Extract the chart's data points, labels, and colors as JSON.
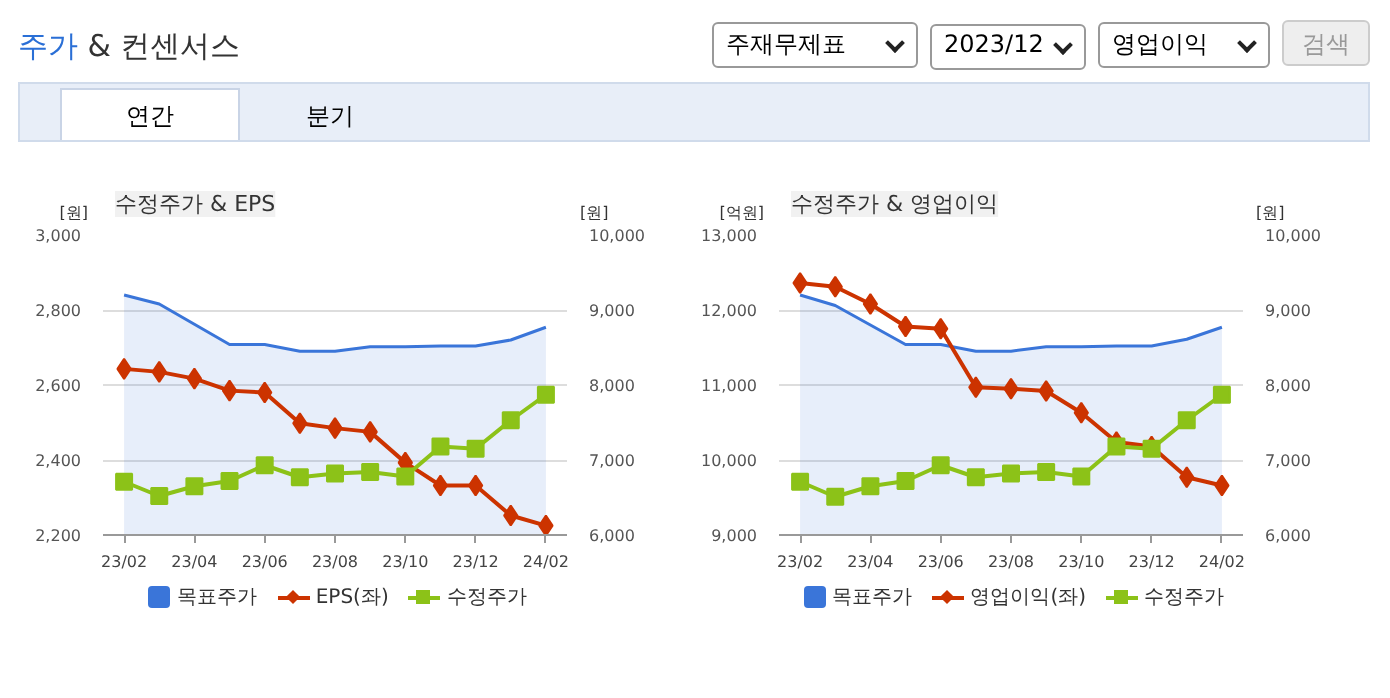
{
  "chart_data": [
    {
      "type": "other",
      "title": "주가 & 컨센서스",
      "annotations": [
        "주재무제표",
        "2023/12",
        "영업이익",
        "검색",
        "연간",
        "분기"
      ]
    },
    {
      "type": "line",
      "title": "수정주가 & EPS",
      "ylabel": "[원]",
      "y2label": "[원]",
      "categories": [
        "23/02",
        null,
        "23/04",
        null,
        "23/06",
        null,
        "23/08",
        null,
        "23/10",
        null,
        "23/12",
        null,
        "24/02"
      ],
      "ylim": [
        2200,
        3000
      ],
      "yticks": [
        {
          "value": 2200,
          "label": "2,200"
        },
        {
          "value": 2400,
          "label": "2,400"
        },
        {
          "value": 2600,
          "label": "2,600"
        },
        {
          "value": 2800,
          "label": "2,800"
        },
        {
          "value": 3000,
          "label": "3,000"
        }
      ],
      "y2lim": [
        6000,
        10000
      ],
      "y2ticks": [
        {
          "value": 6000,
          "label": "6,000"
        },
        {
          "value": 7000,
          "label": "7,000"
        },
        {
          "value": 8000,
          "label": "8,000"
        },
        {
          "value": 9000,
          "label": "9,000"
        },
        {
          "value": 10000,
          "label": "10,000"
        }
      ],
      "grid": "y",
      "legend": "bottom",
      "series": [
        {
          "name": "목표주가",
          "type": "area",
          "axis": "y2",
          "color": "#3a75d9",
          "values": [
            9200,
            9080,
            8810,
            8540,
            8540,
            8450,
            8450,
            8510,
            8510,
            8520,
            8520,
            8600,
            8770
          ]
        },
        {
          "name": "EPS(좌)",
          "type": "line",
          "marker": "diamond",
          "color": "#cc3300",
          "values": [
            2643,
            2635,
            2617,
            2585,
            2580,
            2498,
            2485,
            2475,
            2393,
            2332,
            2332,
            2252,
            2225
          ]
        },
        {
          "name": "수정주가",
          "type": "line",
          "axis": "y2",
          "marker": "square",
          "color": "#8cc218",
          "values": [
            6710,
            6520,
            6650,
            6720,
            6930,
            6770,
            6820,
            6840,
            6780,
            7180,
            7150,
            7530,
            7870
          ]
        }
      ]
    },
    {
      "type": "line",
      "title": "수정주가 & 영업이익",
      "ylabel": "[억원]",
      "y2label": "[원]",
      "categories": [
        "23/02",
        null,
        "23/04",
        null,
        "23/06",
        null,
        "23/08",
        null,
        "23/10",
        null,
        "23/12",
        null,
        "24/02"
      ],
      "ylim": [
        9000,
        13000
      ],
      "yticks": [
        {
          "value": 9000,
          "label": "9,000"
        },
        {
          "value": 10000,
          "label": "10,000"
        },
        {
          "value": 11000,
          "label": "11,000"
        },
        {
          "value": 12000,
          "label": "12,000"
        },
        {
          "value": 13000,
          "label": "13,000"
        }
      ],
      "y2lim": [
        6000,
        10000
      ],
      "y2ticks": [
        {
          "value": 6000,
          "label": "6,000"
        },
        {
          "value": 7000,
          "label": "7,000"
        },
        {
          "value": 8000,
          "label": "8,000"
        },
        {
          "value": 9000,
          "label": "9,000"
        },
        {
          "value": 10000,
          "label": "10,000"
        }
      ],
      "grid": "y",
      "legend": "bottom",
      "series": [
        {
          "name": "목표주가",
          "type": "area",
          "axis": "y2",
          "color": "#3a75d9",
          "values": [
            9200,
            9060,
            8800,
            8540,
            8540,
            8450,
            8450,
            8510,
            8510,
            8520,
            8520,
            8610,
            8770
          ]
        },
        {
          "name": "영업이익(좌)",
          "type": "line",
          "marker": "diamond",
          "color": "#cc3300",
          "values": [
            12360,
            12310,
            12080,
            11780,
            11750,
            10970,
            10950,
            10920,
            10630,
            10240,
            10180,
            9770,
            9660
          ]
        },
        {
          "name": "수정주가",
          "type": "line",
          "axis": "y2",
          "marker": "square",
          "color": "#8cc218",
          "values": [
            6710,
            6510,
            6650,
            6720,
            6930,
            6770,
            6820,
            6840,
            6780,
            7180,
            7150,
            7530,
            7870
          ]
        }
      ]
    }
  ]
}
